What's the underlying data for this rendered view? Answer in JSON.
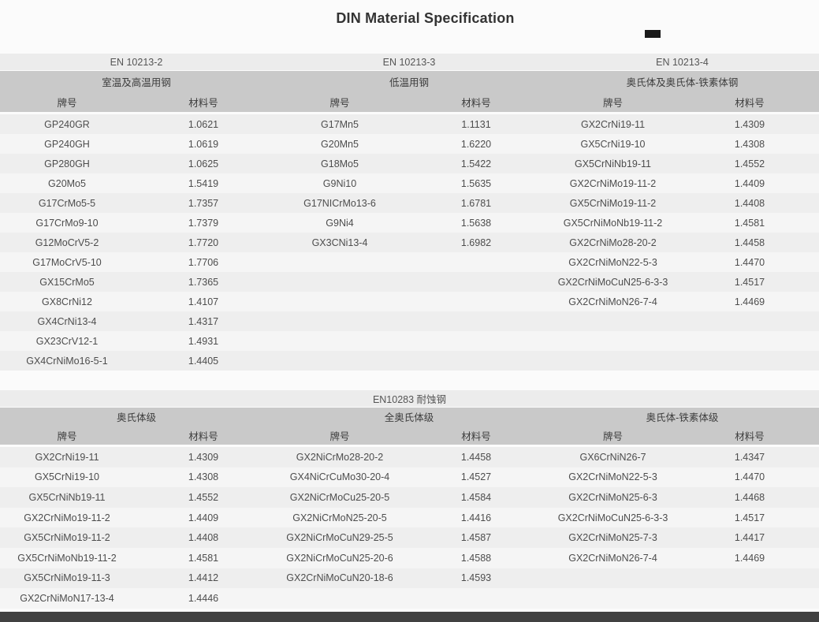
{
  "page_title": "DIN Material Specification",
  "colors": {
    "page_bg": "#fbfbfb",
    "band_light_bg": "#ececec",
    "band_dark_bg": "#c9c9c9",
    "row_odd_bg": "#eeeeee",
    "row_even_bg": "#f5f5f5",
    "title_text": "#333333",
    "band_text": "#555555",
    "cell_text": "#4d4d4d",
    "footer_bar": "#414141",
    "marker": "#1a1a1a"
  },
  "col_headers": {
    "grade": "牌号",
    "material": "材料号"
  },
  "tables": [
    {
      "groups": [
        {
          "standard": "EN 10213-2",
          "category": "室温及高温用钢"
        },
        {
          "standard": "EN 10213-3",
          "category": "低温用钢"
        },
        {
          "standard": "EN 10213-4",
          "category": "奥氏体及奥氏体-铁素体钢"
        }
      ],
      "rows": [
        [
          "GP240GR",
          "1.0621",
          "G17Mn5",
          "1.1131",
          "GX2CrNi19-11",
          "1.4309"
        ],
        [
          "GP240GH",
          "1.0619",
          "G20Mn5",
          "1.6220",
          "GX5CrNi19-10",
          "1.4308"
        ],
        [
          "GP280GH",
          "1.0625",
          "G18Mo5",
          "1.5422",
          "GX5CrNiNb19-11",
          "1.4552"
        ],
        [
          "G20Mo5",
          "1.5419",
          "G9Ni10",
          "1.5635",
          "GX2CrNiMo19-11-2",
          "1.4409"
        ],
        [
          "G17CrMo5-5",
          "1.7357",
          "G17NICrMo13-6",
          "1.6781",
          "GX5CrNiMo19-11-2",
          "1.4408"
        ],
        [
          "G17CrMo9-10",
          "1.7379",
          "G9Ni4",
          "1.5638",
          "GX5CrNiMoNb19-11-2",
          "1.4581"
        ],
        [
          "G12MoCrV5-2",
          "1.7720",
          "GX3CNi13-4",
          "1.6982",
          "GX2CrNiMo28-20-2",
          "1.4458"
        ],
        [
          "G17MoCrV5-10",
          "1.7706",
          "",
          "",
          "GX2CrNiMoN22-5-3",
          "1.4470"
        ],
        [
          "GX15CrMo5",
          "1.7365",
          "",
          "",
          "GX2CrNiMoCuN25-6-3-3",
          "1.4517"
        ],
        [
          "GX8CrNi12",
          "1.4107",
          "",
          "",
          "GX2CrNiMoN26-7-4",
          "1.4469"
        ],
        [
          "GX4CrNi13-4",
          "1.4317",
          "",
          "",
          "",
          ""
        ],
        [
          "GX23CrV12-1",
          "1.4931",
          "",
          "",
          "",
          ""
        ],
        [
          "GX4CrNiMo16-5-1",
          "1.4405",
          "",
          "",
          "",
          ""
        ]
      ]
    },
    {
      "title": "EN10283 耐蚀钢",
      "groups": [
        {
          "category": "奥氏体级"
        },
        {
          "category": "全奥氏体级"
        },
        {
          "category": "奥氏体-铁素体级"
        }
      ],
      "rows": [
        [
          "GX2CrNi19-11",
          "1.4309",
          "GX2NiCrMo28-20-2",
          "1.4458",
          "GX6CrNiN26-7",
          "1.4347"
        ],
        [
          "GX5CrNi19-10",
          "1.4308",
          "GX4NiCrCuMo30-20-4",
          "1.4527",
          "GX2CrNiMoN22-5-3",
          "1.4470"
        ],
        [
          "GX5CrNiNb19-11",
          "1.4552",
          "GX2NiCrMoCu25-20-5",
          "1.4584",
          "GX2CrNiMoN25-6-3",
          "1.4468"
        ],
        [
          "GX2CrNiMo19-11-2",
          "1.4409",
          "GX2NiCrMoN25-20-5",
          "1.4416",
          "GX2CrNiMoCuN25-6-3-3",
          "1.4517"
        ],
        [
          "GX5CrNiMo19-11-2",
          "1.4408",
          "GX2NiCrMoCuN29-25-5",
          "1.4587",
          "GX2CrNiMoN25-7-3",
          "1.4417"
        ],
        [
          "GX5CrNiMoNb19-11-2",
          "1.4581",
          "GX2NiCrMoCuN25-20-6",
          "1.4588",
          "GX2CrNiMoN26-7-4",
          "1.4469"
        ],
        [
          "GX5CrNiMo19-11-3",
          "1.4412",
          "GX2CrNiMoCuN20-18-6",
          "1.4593",
          "",
          ""
        ],
        [
          "GX2CrNiMoN17-13-4",
          "1.4446",
          "",
          "",
          "",
          ""
        ]
      ]
    }
  ]
}
